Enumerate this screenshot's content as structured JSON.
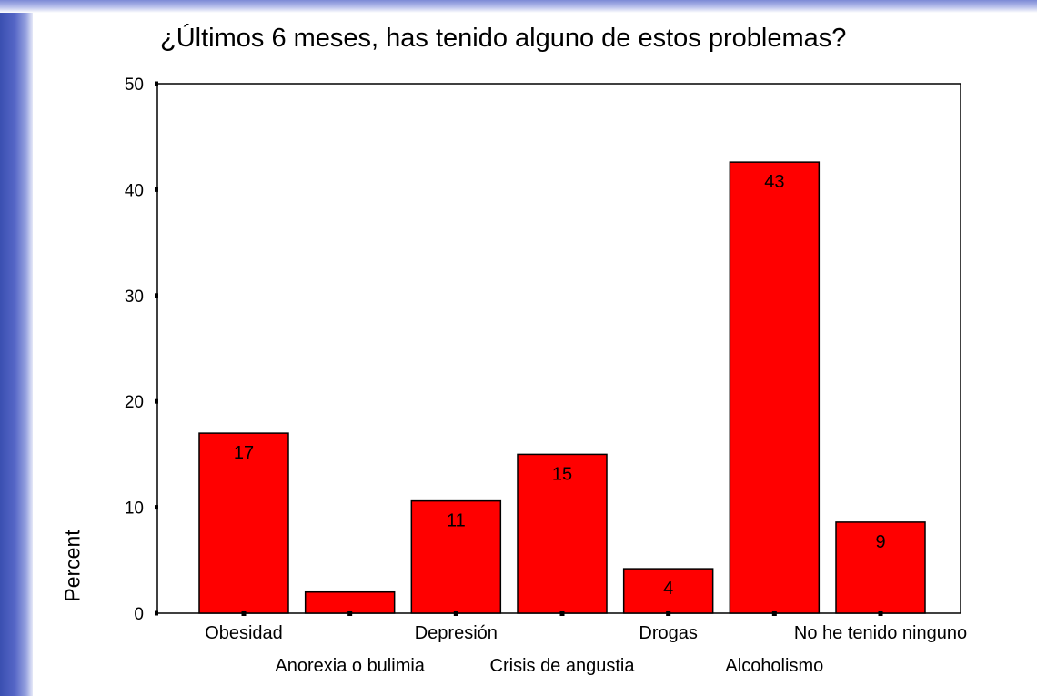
{
  "chart_data": {
    "type": "bar",
    "title": "¿Últimos 6 meses, has tenido alguno de estos problemas?",
    "xlabel": "",
    "ylabel": "Percent",
    "ylim": [
      0,
      50
    ],
    "yticks": [
      0,
      10,
      20,
      30,
      40,
      50
    ],
    "grid": false,
    "bar_color": "#ff0000",
    "categories": [
      "Obesidad",
      "Anorexia o bulimia",
      "Depresión",
      "Crisis de angustia",
      "Drogas",
      "Alcoholismo",
      "No he tenido ninguno"
    ],
    "values": [
      17,
      2,
      10.6,
      15,
      4.2,
      42.6,
      8.6
    ],
    "data_labels": [
      "17",
      "",
      "11",
      "15",
      "4",
      "43",
      "9"
    ]
  }
}
